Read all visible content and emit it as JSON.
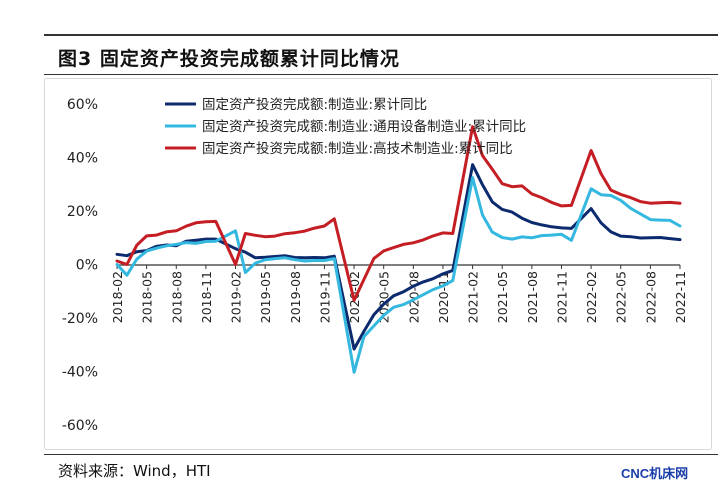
{
  "figure": {
    "title": "图3  固定资产投资完成额累计同比情况",
    "source": "资料来源：Wind，HTI",
    "watermark": "CNC机床网"
  },
  "colors": {
    "series": [
      "#0c2a6e",
      "#35b8e0",
      "#c41e24"
    ],
    "axis": "#333333"
  },
  "chart_data": {
    "type": "line",
    "title": "",
    "xlabel": "",
    "ylabel": "",
    "ylim": [
      -0.6,
      0.6
    ],
    "y_ticks": [
      0.6,
      0.4,
      0.2,
      0.0,
      -0.2,
      -0.4,
      -0.6
    ],
    "y_tick_labels": [
      "60%",
      "40%",
      "20%",
      "0%",
      "-20%",
      "-40%",
      "-60%"
    ],
    "x_tick_labels": [
      "2018-02",
      "2018-05",
      "2018-08",
      "2018-11",
      "2019-02",
      "2019-05",
      "2019-08",
      "2019-11",
      "2020-02",
      "2020-05",
      "2020-08",
      "2020-11",
      "2021-02",
      "2021-05",
      "2021-08",
      "2021-11",
      "2022-02",
      "2022-05",
      "2022-08",
      "2022-11"
    ],
    "grid": false,
    "legend_position": "top-left",
    "x": [
      "2018-02",
      "2018-03",
      "2018-04",
      "2018-05",
      "2018-06",
      "2018-07",
      "2018-08",
      "2018-09",
      "2018-10",
      "2018-11",
      "2018-12",
      "2019-02",
      "2019-03",
      "2019-04",
      "2019-05",
      "2019-06",
      "2019-07",
      "2019-08",
      "2019-09",
      "2019-10",
      "2019-11",
      "2019-12",
      "2020-02",
      "2020-03",
      "2020-04",
      "2020-05",
      "2020-06",
      "2020-07",
      "2020-08",
      "2020-09",
      "2020-10",
      "2020-11",
      "2020-12",
      "2021-02",
      "2021-03",
      "2021-04",
      "2021-05",
      "2021-06",
      "2021-07",
      "2021-08",
      "2021-09",
      "2021-10",
      "2021-11",
      "2021-12",
      "2022-02",
      "2022-03",
      "2022-04",
      "2022-05",
      "2022-06",
      "2022-07",
      "2022-08",
      "2022-09",
      "2022-10",
      "2022-11"
    ],
    "series": [
      {
        "name": "固定资产投资完成额:制造业:累计同比",
        "values": [
          0.038,
          0.033,
          0.048,
          0.052,
          0.068,
          0.073,
          0.07,
          0.087,
          0.091,
          0.095,
          0.095,
          0.059,
          0.046,
          0.025,
          0.027,
          0.03,
          0.033,
          0.026,
          0.025,
          0.026,
          0.025,
          0.031,
          -0.316,
          -0.25,
          -0.188,
          -0.148,
          -0.117,
          -0.102,
          -0.081,
          -0.065,
          -0.053,
          -0.035,
          -0.022,
          0.373,
          0.298,
          0.234,
          0.206,
          0.196,
          0.173,
          0.157,
          0.148,
          0.141,
          0.137,
          0.135,
          0.209,
          0.156,
          0.122,
          0.106,
          0.104,
          0.099,
          0.1,
          0.101,
          0.097,
          0.093
        ]
      },
      {
        "name": "固定资产投资完成额:制造业:通用设备制造业:累计同比",
        "values": [
          0.0,
          -0.04,
          0.02,
          0.05,
          0.061,
          0.07,
          0.075,
          0.082,
          0.079,
          0.086,
          0.087,
          0.126,
          -0.03,
          0.005,
          0.018,
          0.022,
          0.025,
          0.018,
          0.013,
          0.015,
          0.015,
          0.022,
          -0.403,
          -0.27,
          -0.23,
          -0.19,
          -0.16,
          -0.15,
          -0.132,
          -0.113,
          -0.094,
          -0.08,
          -0.06,
          0.325,
          0.185,
          0.121,
          0.101,
          0.095,
          0.103,
          0.1,
          0.108,
          0.11,
          0.113,
          0.09,
          0.283,
          0.261,
          0.258,
          0.24,
          0.21,
          0.189,
          0.168,
          0.166,
          0.165,
          0.144
        ]
      },
      {
        "name": "固定资产投资完成额:制造业:高技术制造业:累计同比",
        "values": [
          0.013,
          0.0,
          0.072,
          0.107,
          0.11,
          0.122,
          0.126,
          0.143,
          0.156,
          0.16,
          0.161,
          0.0,
          0.116,
          0.109,
          0.104,
          0.106,
          0.115,
          0.119,
          0.125,
          0.136,
          0.144,
          0.171,
          -0.134,
          -0.056,
          0.022,
          0.051,
          0.063,
          0.075,
          0.081,
          0.092,
          0.107,
          0.118,
          0.116,
          0.515,
          0.407,
          0.356,
          0.302,
          0.291,
          0.294,
          0.264,
          0.25,
          0.232,
          0.219,
          0.221,
          0.426,
          0.34,
          0.278,
          0.262,
          0.25,
          0.235,
          0.229,
          0.231,
          0.232,
          0.229
        ]
      }
    ]
  }
}
